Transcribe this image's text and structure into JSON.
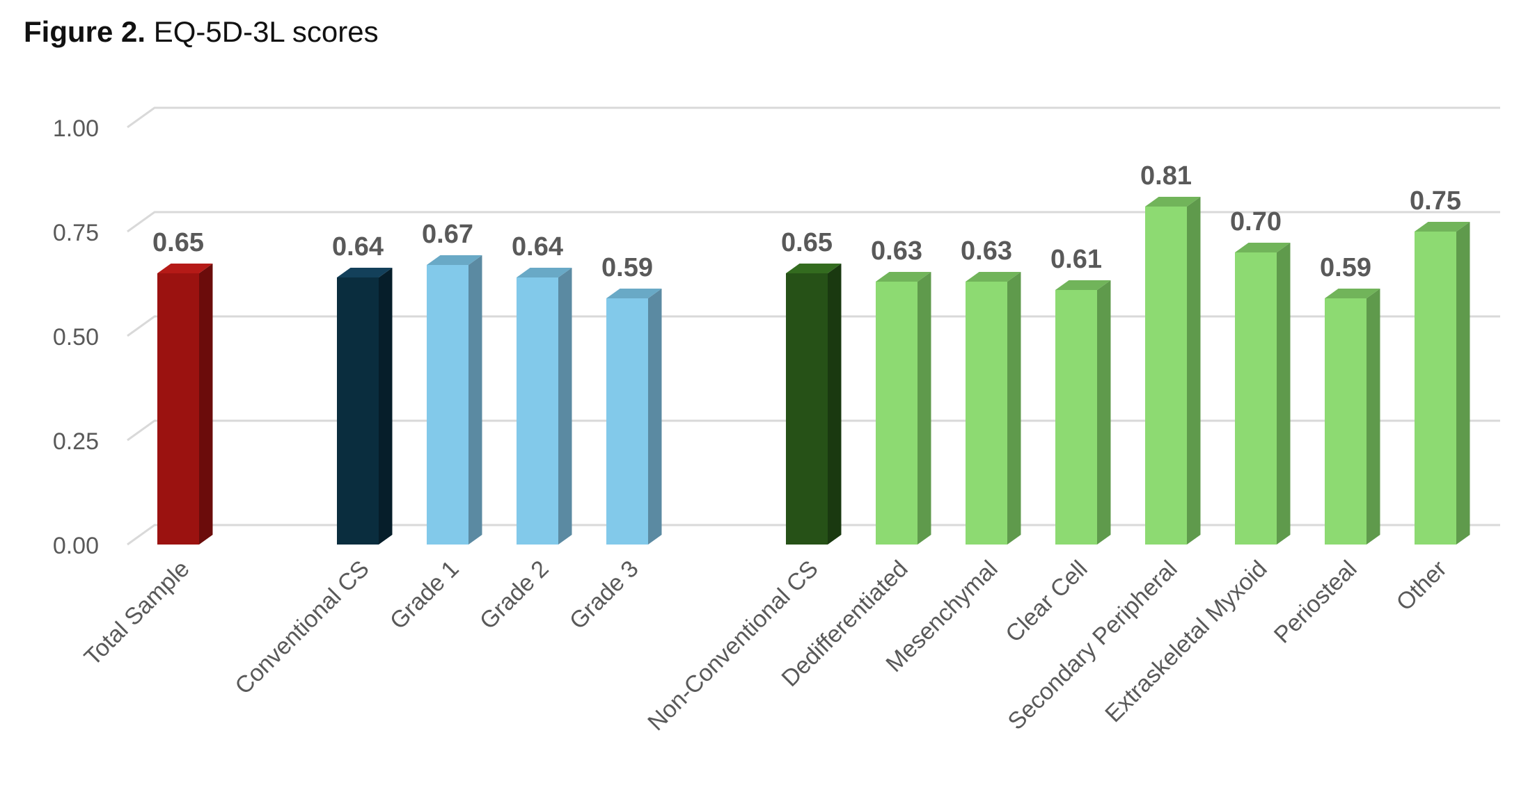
{
  "figure": {
    "label": "Figure 2.",
    "title": "EQ-5D-3L scores"
  },
  "chart_data": {
    "type": "bar",
    "style": "3d-column",
    "categories": [
      "Total Sample",
      "Conventional CS",
      "Grade 1",
      "Grade 2",
      "Grade 3",
      "Non-Conventional CS",
      "Dedifferentiated",
      "Mesenchymal",
      "Clear Cell",
      "Secondary Peripheral",
      "Extraskeletal Myxoid",
      "Periosteal",
      "Other"
    ],
    "values": [
      0.65,
      0.64,
      0.67,
      0.64,
      0.59,
      0.65,
      0.63,
      0.63,
      0.61,
      0.81,
      0.7,
      0.59,
      0.75
    ],
    "data_labels": [
      "0.65",
      "0.64",
      "0.67",
      "0.64",
      "0.59",
      "0.65",
      "0.63",
      "0.63",
      "0.61",
      "0.81",
      "0.70",
      "0.59",
      "0.75"
    ],
    "groups": [
      0,
      1,
      1,
      1,
      1,
      2,
      2,
      2,
      2,
      2,
      2,
      2,
      2
    ],
    "colors": [
      "#9b1210",
      "#0a2d3e",
      "#82c9ea",
      "#82c9ea",
      "#82c9ea",
      "#265117",
      "#8dda72",
      "#8dda72",
      "#8dda72",
      "#8dda72",
      "#8dda72",
      "#8dda72",
      "#8dda72"
    ],
    "side_colors": [
      "#6b0c0b",
      "#061e2a",
      "#5b8aa2",
      "#5b8aa2",
      "#5b8aa2",
      "#1a3910",
      "#5f9a4c",
      "#5f9a4c",
      "#5f9a4c",
      "#5f9a4c",
      "#5f9a4c",
      "#5f9a4c",
      "#5f9a4c"
    ],
    "top_colors": [
      "#b51a17",
      "#13405a",
      "#69a9c6",
      "#69a9c6",
      "#69a9c6",
      "#336b1f",
      "#71b45a",
      "#71b45a",
      "#71b45a",
      "#71b45a",
      "#71b45a",
      "#71b45a",
      "#71b45a"
    ],
    "yticks": [
      "0.00",
      "0.25",
      "0.50",
      "0.75",
      "1.00"
    ],
    "ylim": [
      0,
      1
    ],
    "xlabel": "",
    "ylabel": "",
    "grid": true,
    "legend": "none"
  }
}
